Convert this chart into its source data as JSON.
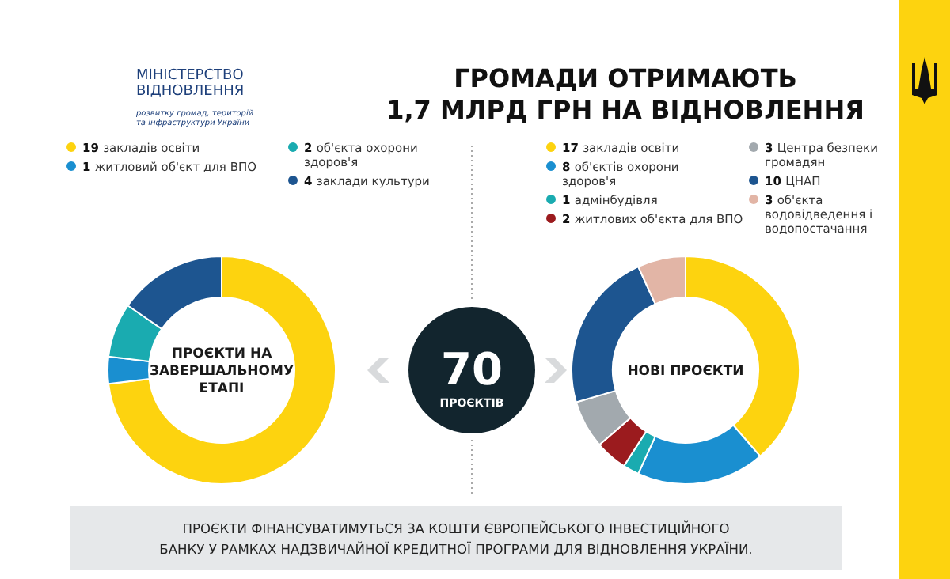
{
  "chart_data": [
    {
      "type": "donut",
      "title": "ПРОЄКТИ НА\nЗАВЕРШАЛЬНОМУ\nЕТАПІ",
      "categories": [
        "закладів освіти",
        "житловий об'єкт для ВПО",
        "об'єкта охорони здоров'я",
        "заклади культури"
      ],
      "values": [
        19,
        1,
        2,
        4
      ],
      "colors": [
        "#fdd30f",
        "#1a8fd0",
        "#1aabb0",
        "#1d5590"
      ],
      "legend": "top",
      "data_labels": true
    },
    {
      "type": "donut",
      "title": "НОВІ ПРОЄКТИ",
      "categories": [
        "закладів освіти",
        "об'єктів охорони здоров'я",
        "адмінбудівля",
        "житлових об'єкта для ВПО",
        "Центра безпеки громадян",
        "ЦНАП",
        "об'єкта водовідведення і водопостачання"
      ],
      "values": [
        17,
        8,
        1,
        2,
        3,
        10,
        3
      ],
      "colors": [
        "#fdd30f",
        "#1a8fd0",
        "#1aabb0",
        "#9b1b1e",
        "#a2a9ae",
        "#1d5590",
        "#e2b5a6"
      ],
      "legend": "top",
      "data_labels": true
    },
    {
      "type": "other",
      "title": "ГРОМАДИ ОТРИМАЮТЬ\n1,7 МЛРД ГРН НА ВІДНОВЛЕННЯ",
      "annotations": [
        "МІНІСТЕРСТВО\nВІДНОВЛЕННЯ",
        "розвитку громад, територій\nта інфраструктури України",
        "70",
        "ПРОЄКТІВ",
        "ПРОЄКТИ ФІНАНСУВАТИМУТЬСЯ ЗА КОШТИ ЄВРОПЕЙСЬКОГО ІНВЕСТИЦІЙНОГО\nБАНКУ У РАМКАХ НАДЗВИЧАЙНОЇ КРЕДИТНОЇ ПРОГРАМИ ДЛЯ ВІДНОВЛЕННЯ УКРАЇНИ."
      ]
    }
  ]
}
